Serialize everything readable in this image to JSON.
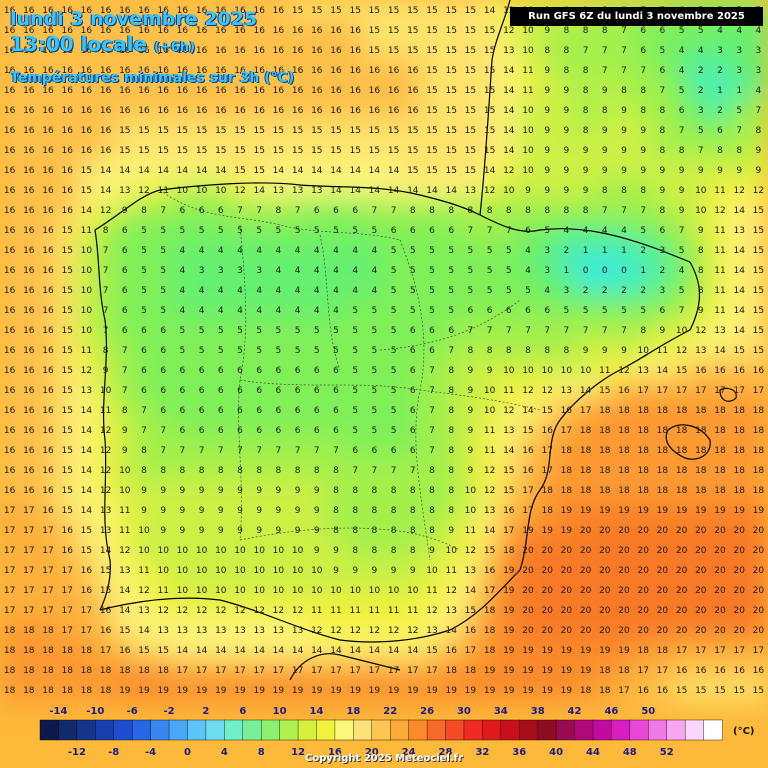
{
  "header": {
    "date": "lundi 3 novembre 2025",
    "time": "13:00 locale",
    "offset": "(+6h)",
    "parameter": "Températures minimales sur 3h (°C)",
    "run": "Run GFS 6Z du lundi 3 novembre 2025"
  },
  "legend": {
    "unit": "(°C)",
    "top_labels": [
      "-14",
      "-10",
      "-6",
      "-2",
      "2",
      "6",
      "10",
      "14",
      "18",
      "22",
      "26",
      "30",
      "34",
      "38",
      "42",
      "46",
      "50"
    ],
    "bottom_labels": [
      "-12",
      "-8",
      "-4",
      "0",
      "4",
      "8",
      "12",
      "16",
      "20",
      "24",
      "28",
      "32",
      "36",
      "40",
      "44",
      "48",
      "52"
    ],
    "colors": [
      "#0b1a4a",
      "#112a6e",
      "#15348c",
      "#1a3fb0",
      "#1e4ed0",
      "#2766e4",
      "#3a86f0",
      "#4aa6f6",
      "#5cc4f8",
      "#6ddcf0",
      "#6ef0c8",
      "#78f09a",
      "#8ef070",
      "#b0f050",
      "#d6f040",
      "#f2f23a",
      "#fbf77a",
      "#fde27a",
      "#fdc650",
      "#fdaa3a",
      "#fb8a2a",
      "#f86a28",
      "#f44a26",
      "#ee2a22",
      "#e01a1a",
      "#c8101a",
      "#a80e1a",
      "#8e0c22",
      "#9a0a50",
      "#b0087a",
      "#c20a9e",
      "#d81ec0",
      "#e848d8",
      "#f278e6",
      "#f8a6f0",
      "#fcd6fa",
      "#ffffff"
    ]
  },
  "copyright": "Copyright 2025 Meteociel.fr",
  "map_data": {
    "grid_rows": [
      "16 16 16 16 16 16 16 16 16 16 16 16 16 16 16 15 15 15 15 15 15 15 15 15 15 14 12 10 9 9 9 8 8 7 7 6 5 5 5 5",
      "16 16 16 16 16 16 16 16 16 16 16 16 16 16 16 16 16 16 16 15 15 15 15 15 15 15 12 10 9 8 8 8 7 6 6 5 5 4 4 4",
      "16 16 16 16 16 16 16 16 16 16 16 16 16 16 16 16 16 16 16 15 15 15 15 15 15 15 13 10 8 8 7 7 7 6 5 4 4 3 3 3",
      "16 16 16 16 16 16 16 16 16 16 16 16 16 16 16 16 16 16 16 16 16 16 15 15 15 15 14 11 9 8 8 7 7 7 6 4 2 2 3 3",
      "16 16 16 16 16 16 16 16 16 16 16 16 16 16 16 16 16 16 16 16 16 16 15 15 15 15 14 11 9 9 8 9 8 8 7 5 2 1 1 4",
      "16 16 16 16 16 16 16 16 16 16 16 16 16 16 16 16 16 16 16 16 16 16 15 15 15 15 14 10 9 9 8 8 9 8 8 6 3 2 5 7",
      "16 16 16 16 16 16 15 15 15 15 15 15 15 15 15 15 15 15 15 15 15 15 15 15 15 15 14 10 9 9 8 9 9 9 8 7 5 6 7 8",
      "16 16 16 16 16 16 15 15 15 15 15 15 15 15 15 15 15 15 15 15 15 15 15 15 15 15 14 10 9 9 9 9 9 9 8 8 7 8 8 9",
      "16 16 16 16 15 14 14 14 14 14 14 14 15 15 14 14 14 14 14 14 14 15 15 15 15 14 12 10 9 9 9 9 9 9 9 9 9 9 9 9",
      "16 16 16 16 15 14 13 12 11 10 10 10 12 14 13 13 13 14 14 14 14 14 14 14 13 12 10 9 9 9 9 8 8 8 9 9 10 11 12 12",
      "16 16 16 16 14 12 9 8 7 6 6 6 7 7 8 7 6 6 6 7 7 8 8 8 8 8 8 8 8 8 8 7 7 7 8 9 10 12 14 15",
      "16 16 16 15 11 8 6 5 5 5 5 5 5 5 5 5 5 5 5 5 6 6 6 6 7 7 7 6 5 4 4 4 4 5 6 7 9 11 13 15",
      "16 16 16 15 10 7 6 5 5 4 4 4 4 4 4 4 4 4 4 4 5 5 5 5 5 5 5 4 3 2 1 1 1 2 3 5 8 11 14 15",
      "16 16 16 15 10 7 6 5 5 4 3 3 3 3 4 4 4 4 4 4 5 5 5 5 5 5 5 4 3 1 0 0 0 1 2 4 8 11 14 15",
      "16 16 16 15 10 7 6 5 5 4 4 4 4 4 4 4 4 4 4 4 5 5 5 5 5 5 5 5 4 3 2 2 2 2 3 5 8 11 14 15",
      "16 16 16 15 10 7 6 5 5 4 4 4 4 4 4 4 4 4 5 5 5 5 5 5 6 6 6 6 6 5 5 5 5 5 6 7 9 11 14 15",
      "16 16 16 15 10 7 6 6 6 5 5 5 5 5 5 5 5 5 5 5 5 6 6 6 7 7 7 7 7 7 7 7 7 8 9 10 12 13 14 15",
      "16 16 16 15 11 8 7 6 6 5 5 5 5 5 5 5 5 5 5 5 5 6 6 7 8 8 8 8 8 8 9 9 9 10 11 12 13 14 15 15",
      "16 16 16 15 12 9 7 6 6 6 6 6 6 6 6 6 6 6 5 5 5 6 7 8 9 9 10 10 10 10 10 11 12 13 14 15 16 16 16 16",
      "16 16 16 15 13 10 7 6 6 6 6 6 6 6 6 6 6 6 5 5 5 6 7 8 9 10 11 12 12 13 14 15 16 17 17 17 17 17 17 17",
      "16 16 16 15 14 11 8 7 6 6 6 6 6 6 6 6 6 6 5 5 5 6 7 8 9 10 12 14 15 16 17 18 18 18 18 18 18 18 18 18",
      "16 16 16 15 14 12 9 7 7 6 6 6 6 6 6 6 6 6 5 5 5 6 7 8 9 11 13 15 16 17 18 18 18 18 18 18 18 18 18 18",
      "16 16 16 15 14 12 9 8 7 7 7 7 7 7 7 7 7 7 6 6 6 6 7 8 9 11 14 16 17 18 18 18 18 18 18 18 18 18 18 18",
      "16 16 16 15 14 12 10 8 8 8 8 8 8 8 8 8 8 8 7 7 7 7 8 8 9 12 15 16 17 18 18 18 18 18 18 18 18 18 18 18",
      "16 16 16 15 14 12 10 9 9 9 9 9 9 9 9 9 9 8 8 8 8 8 8 8 10 12 15 17 18 18 18 18 18 18 18 18 18 18 18 18",
      "17 17 16 15 14 13 11 9 9 9 9 9 9 9 9 9 9 8 8 8 8 8 8 8 10 13 16 17 18 19 19 19 19 19 19 19 19 19 19 19",
      "17 17 17 16 15 13 11 10 9 9 9 9 9 9 9 9 9 8 8 8 8 8 8 9 11 14 17 19 19 19 20 20 20 20 20 20 20 20 20 20",
      "17 17 17 16 15 14 12 10 10 10 10 10 10 10 10 10 9 9 8 8 8 8 9 10 12 15 18 20 20 20 20 20 20 20 20 20 20 20 20 20",
      "17 17 17 17 16 15 13 11 10 10 10 10 10 10 10 10 10 9 9 9 9 9 10 11 13 16 19 20 20 20 20 20 20 20 20 20 20 20 20 20",
      "17 17 17 17 16 15 14 12 11 10 10 10 10 10 10 10 10 10 10 10 10 10 11 12 14 17 19 20 20 20 20 20 20 20 20 20 20 20 20 20",
      "17 17 17 17 17 16 14 13 12 12 12 12 12 12 12 12 11 11 11 11 11 11 12 13 15 18 19 20 20 20 20 20 20 20 20 20 20 20 20 20",
      "18 18 18 17 17 16 15 14 13 13 13 13 13 13 13 13 12 12 12 12 12 12 13 14 16 18 19 20 20 20 20 20 20 20 20 20 20 20 20 20",
      "18 18 18 18 18 17 16 15 15 14 14 14 14 14 14 14 14 14 14 14 14 14 15 16 17 18 19 19 19 19 19 19 19 18 18 17 17 17 17 17",
      "18 18 18 18 18 18 18 18 18 17 17 17 17 17 17 17 17 17 17 17 17 17 17 18 18 19 19 19 19 19 19 18 18 17 17 16 16 16 16 16",
      "18 18 18 18 18 18 19 19 19 19 19 19 19 19 19 19 19 19 19 19 19 19 19 19 19 19 19 19 19 19 18 18 17 16 16 15 15 15 15 15"
    ]
  }
}
